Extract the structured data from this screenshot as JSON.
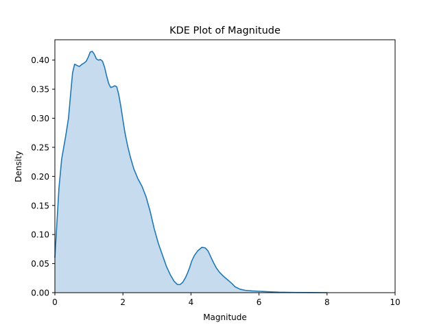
{
  "chart_data": {
    "type": "area",
    "title": "KDE Plot of Magnitude",
    "xlabel": "Magnitude",
    "ylabel": "Density",
    "xlim": [
      0,
      10
    ],
    "ylim": [
      0,
      0.435
    ],
    "xticks": [
      0,
      2,
      4,
      6,
      8,
      10
    ],
    "xtick_labels": [
      "0",
      "2",
      "4",
      "6",
      "8",
      "10"
    ],
    "yticks": [
      0,
      0.05,
      0.1,
      0.15,
      0.2,
      0.25,
      0.3,
      0.35,
      0.4
    ],
    "ytick_labels": [
      "0.00",
      "0.05",
      "0.10",
      "0.15",
      "0.20",
      "0.25",
      "0.30",
      "0.35",
      "0.40"
    ],
    "grid": false,
    "legend": "none",
    "colors": {
      "line": "#1f77b4",
      "fill": "#c6dbed"
    },
    "series": [
      {
        "x": [
          0,
          0.06,
          0.12,
          0.2,
          0.26,
          0.32,
          0.4,
          0.46,
          0.52,
          0.58,
          0.64,
          0.72,
          0.8,
          0.86,
          0.92,
          0.98,
          1.04,
          1.1,
          1.16,
          1.22,
          1.28,
          1.34,
          1.4,
          1.46,
          1.52,
          1.58,
          1.64,
          1.7,
          1.76,
          1.82,
          1.88,
          1.94,
          2.0,
          2.06,
          2.14,
          2.22,
          2.32,
          2.44,
          2.56,
          2.68,
          2.8,
          2.92,
          3.04,
          3.16,
          3.28,
          3.4,
          3.5,
          3.6,
          3.68,
          3.76,
          3.84,
          3.9,
          3.96,
          4.02,
          4.1,
          4.2,
          4.32,
          4.42,
          4.5,
          4.58,
          4.66,
          4.74,
          4.84,
          4.96,
          5.08,
          5.2,
          5.3,
          5.44,
          5.6,
          5.8,
          6.0,
          6.3,
          6.6,
          7.0,
          7.5,
          8.0
        ],
        "y": [
          0.06,
          0.12,
          0.18,
          0.23,
          0.25,
          0.27,
          0.3,
          0.34,
          0.378,
          0.393,
          0.391,
          0.389,
          0.393,
          0.395,
          0.398,
          0.405,
          0.414,
          0.415,
          0.41,
          0.402,
          0.4,
          0.401,
          0.398,
          0.388,
          0.373,
          0.36,
          0.353,
          0.354,
          0.356,
          0.354,
          0.34,
          0.32,
          0.297,
          0.275,
          0.252,
          0.233,
          0.213,
          0.196,
          0.183,
          0.165,
          0.14,
          0.11,
          0.085,
          0.065,
          0.045,
          0.03,
          0.02,
          0.014,
          0.014,
          0.018,
          0.026,
          0.034,
          0.043,
          0.054,
          0.064,
          0.072,
          0.078,
          0.077,
          0.072,
          0.062,
          0.052,
          0.043,
          0.035,
          0.028,
          0.022,
          0.016,
          0.01,
          0.006,
          0.004,
          0.003,
          0.0025,
          0.0015,
          0.0008,
          0.0004,
          0.0002,
          0
        ]
      }
    ]
  }
}
